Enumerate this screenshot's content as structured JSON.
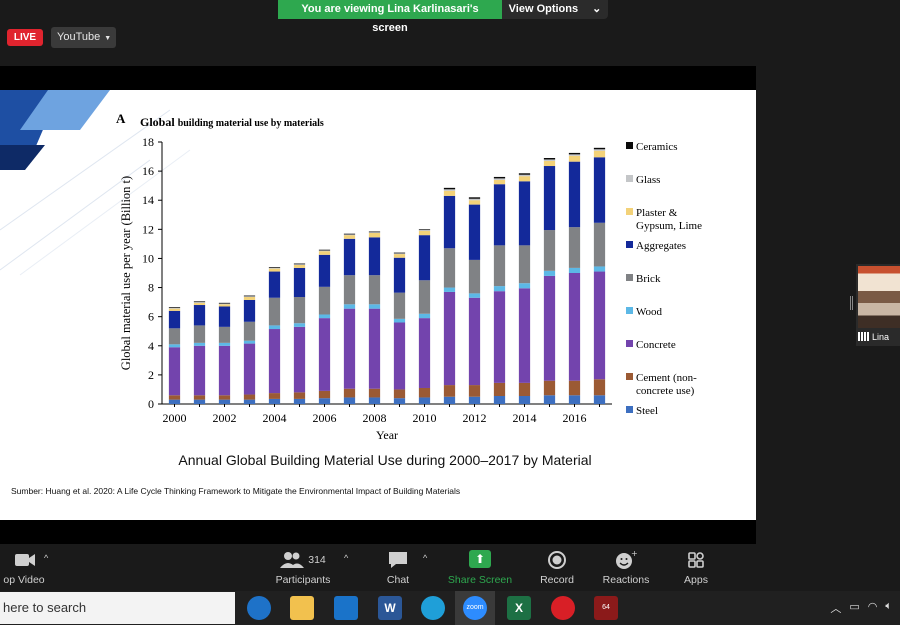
{
  "banner": {
    "text": "You are viewing Lina Karlinasari's screen",
    "options_label": "View Options",
    "caret": "⌄"
  },
  "live": {
    "badge": "LIVE",
    "platform": "YouTube"
  },
  "slide": {
    "caption": "Annual Global Building Material Use during 2000–2017 by Material",
    "source": "Sumber: Huang et al. 2020: A Life Cycle Thinking Framework to Mitigate the Environmental Impact of Building Materials"
  },
  "chart_data": {
    "type": "bar",
    "stacked": true,
    "panel_label": "A",
    "title_bold": "Global",
    "title_rest": "building material use by materials",
    "xlabel": "Year",
    "ylabel": "Global material use per year (Billion t)",
    "ylim": [
      0,
      18
    ],
    "yticks": [
      0,
      2,
      4,
      6,
      8,
      10,
      12,
      14,
      16,
      18
    ],
    "xtick_labels": [
      "2000",
      "2002",
      "2004",
      "2006",
      "2008",
      "2010",
      "2012",
      "2014",
      "2016"
    ],
    "categories": [
      "2000",
      "2001",
      "2002",
      "2003",
      "2004",
      "2005",
      "2006",
      "2007",
      "2008",
      "2009",
      "2010",
      "2011",
      "2012",
      "2013",
      "2014",
      "2015",
      "2016",
      "2017"
    ],
    "series": [
      {
        "name": "Steel",
        "color": "#3d6fc0",
        "values": [
          0.3,
          0.3,
          0.3,
          0.3,
          0.35,
          0.35,
          0.4,
          0.45,
          0.45,
          0.4,
          0.45,
          0.5,
          0.5,
          0.55,
          0.55,
          0.6,
          0.6,
          0.6
        ]
      },
      {
        "name": "Cement (non-\nconcrete use)",
        "color": "#9b5a34",
        "values": [
          0.3,
          0.3,
          0.3,
          0.35,
          0.4,
          0.45,
          0.5,
          0.6,
          0.6,
          0.6,
          0.65,
          0.8,
          0.8,
          0.9,
          0.9,
          1.0,
          1.0,
          1.1
        ]
      },
      {
        "name": "Concrete",
        "color": "#7344ad",
        "values": [
          3.3,
          3.4,
          3.4,
          3.5,
          4.4,
          4.5,
          5.0,
          5.5,
          5.5,
          4.6,
          4.8,
          6.4,
          6.0,
          6.3,
          6.5,
          7.2,
          7.4,
          7.4
        ]
      },
      {
        "name": "Wood",
        "color": "#5cb8e6",
        "values": [
          0.2,
          0.2,
          0.2,
          0.2,
          0.25,
          0.25,
          0.25,
          0.3,
          0.3,
          0.25,
          0.3,
          0.3,
          0.3,
          0.35,
          0.35,
          0.35,
          0.35,
          0.35
        ]
      },
      {
        "name": "Brick",
        "color": "#808285",
        "values": [
          1.1,
          1.2,
          1.1,
          1.3,
          1.9,
          1.8,
          1.9,
          2.0,
          2.0,
          1.8,
          2.3,
          2.7,
          2.3,
          2.8,
          2.6,
          2.8,
          2.8,
          3.0
        ]
      },
      {
        "name": "Aggregates",
        "color": "#13299a",
        "values": [
          1.2,
          1.4,
          1.4,
          1.5,
          1.8,
          2.0,
          2.2,
          2.5,
          2.6,
          2.4,
          3.1,
          3.6,
          3.8,
          4.2,
          4.4,
          4.4,
          4.5,
          4.5
        ]
      },
      {
        "name": "Plaster &\nGypsum, Lime",
        "color": "#f3d279",
        "values": [
          0.15,
          0.15,
          0.15,
          0.2,
          0.2,
          0.2,
          0.25,
          0.25,
          0.3,
          0.25,
          0.3,
          0.35,
          0.3,
          0.3,
          0.35,
          0.35,
          0.4,
          0.45
        ]
      },
      {
        "name": "Glass",
        "color": "#c4c6c8",
        "values": [
          0.05,
          0.05,
          0.05,
          0.05,
          0.05,
          0.05,
          0.05,
          0.05,
          0.05,
          0.05,
          0.05,
          0.1,
          0.1,
          0.1,
          0.1,
          0.1,
          0.1,
          0.1
        ]
      },
      {
        "name": "Ceramics",
        "color": "#0a0a0a",
        "values": [
          0.05,
          0.05,
          0.05,
          0.05,
          0.05,
          0.05,
          0.05,
          0.05,
          0.05,
          0.05,
          0.05,
          0.1,
          0.1,
          0.1,
          0.1,
          0.1,
          0.1,
          0.1
        ]
      }
    ],
    "legend_order": [
      "Ceramics",
      "Glass",
      "Plaster &\nGypsum, Lime",
      "Aggregates",
      "Brick",
      "Wood",
      "Concrete",
      "Cement (non-\nconcrete use)",
      "Steel"
    ],
    "legend_position": "right"
  },
  "participant": {
    "name": "Lina"
  },
  "toolbar": {
    "video_label": "op Video",
    "participants_label": "Participants",
    "participants_count": "314",
    "chat_label": "Chat",
    "share_label": "Share Screen",
    "record_label": "Record",
    "reactions_label": "Reactions",
    "apps_label": "Apps",
    "caret": "^"
  },
  "taskbar": {
    "search_placeholder": "here to search",
    "zoom_icon_text": "zoom",
    "excel_icon_text": "X",
    "word_icon_text": "W",
    "badge": "64"
  }
}
